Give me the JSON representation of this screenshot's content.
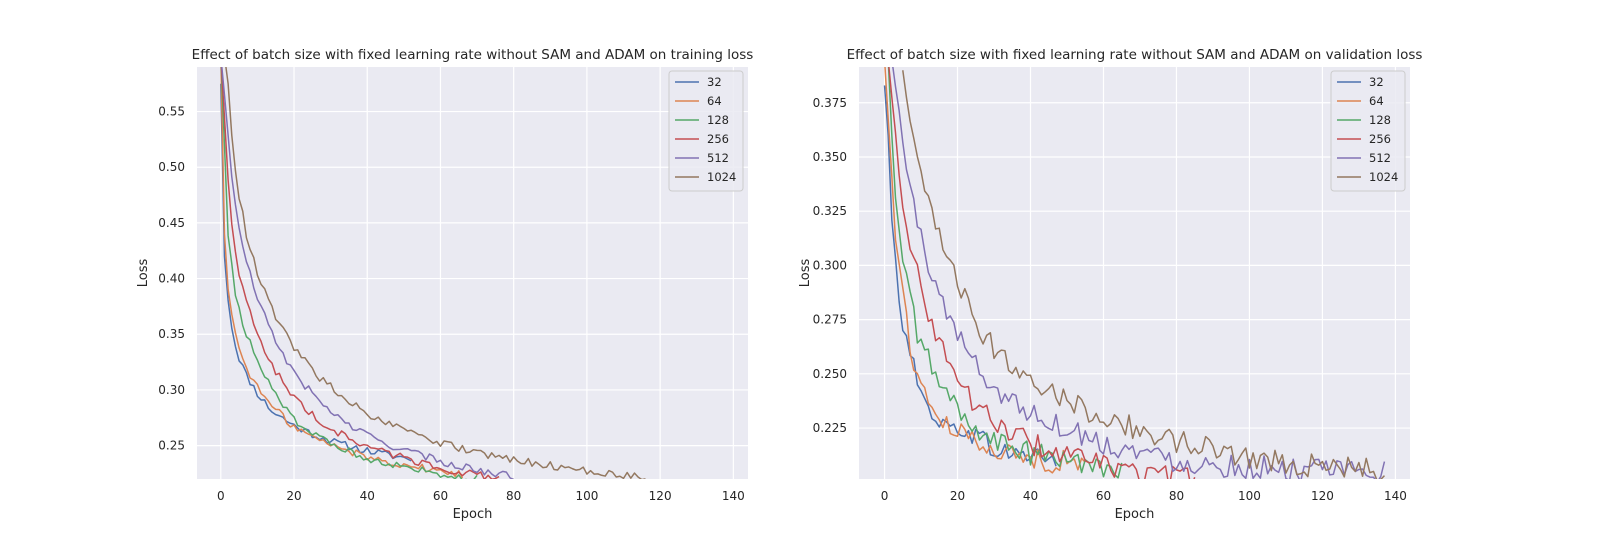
{
  "chart_data": [
    {
      "type": "line",
      "title": "Effect of batch size with fixed learning rate without SAM and ADAM on training loss",
      "xlabel": "Epoch",
      "ylabel": "Loss",
      "xlim": [
        -6.5,
        144
      ],
      "ylim": [
        0.22,
        0.59
      ],
      "xticks": [
        0,
        20,
        40,
        60,
        80,
        100,
        120,
        140
      ],
      "yticks": [
        0.25,
        0.3,
        0.35,
        0.4,
        0.45,
        0.5,
        0.55
      ],
      "ytick_labels": [
        "0.25",
        "0.30",
        "0.35",
        "0.40",
        "0.45",
        "0.50",
        "0.55"
      ],
      "grid": true,
      "legend_position": "top-right",
      "series": [
        {
          "name": "32",
          "color": "#4c72b0",
          "end": 52,
          "floor": 0.228,
          "a": 0.26,
          "k": 0.15,
          "points": [
            [
              0,
              0.575
            ],
            [
              1,
              0.42
            ],
            [
              2,
              0.382
            ],
            [
              3,
              0.357
            ],
            [
              4,
              0.34
            ],
            [
              5,
              0.329
            ],
            [
              7,
              0.313
            ],
            [
              10,
              0.297
            ],
            [
              14,
              0.281
            ],
            [
              20,
              0.268
            ],
            [
              26,
              0.259
            ],
            [
              32,
              0.252
            ],
            [
              38,
              0.247
            ],
            [
              45,
              0.242
            ],
            [
              52,
              0.238
            ]
          ]
        },
        {
          "name": "64",
          "color": "#dd8452",
          "end": 66,
          "floor": 0.225,
          "a": 0.25,
          "k": 0.14,
          "points": [
            [
              0,
              0.6
            ],
            [
              1,
              0.44
            ],
            [
              2,
              0.392
            ],
            [
              3,
              0.367
            ],
            [
              4,
              0.35
            ],
            [
              5,
              0.338
            ],
            [
              7,
              0.32
            ],
            [
              10,
              0.302
            ],
            [
              14,
              0.285
            ],
            [
              20,
              0.267
            ],
            [
              26,
              0.256
            ],
            [
              34,
              0.246
            ],
            [
              42,
              0.238
            ],
            [
              50,
              0.233
            ],
            [
              58,
              0.228
            ],
            [
              66,
              0.224
            ]
          ]
        },
        {
          "name": "128",
          "color": "#55a868",
          "end": 70,
          "floor": 0.222,
          "a": 0.24,
          "k": 0.12,
          "points": [
            [
              0,
              0.6
            ],
            [
              2,
              0.44
            ],
            [
              3,
              0.41
            ],
            [
              4,
              0.388
            ],
            [
              5,
              0.372
            ],
            [
              7,
              0.35
            ],
            [
              10,
              0.325
            ],
            [
              14,
              0.3
            ],
            [
              20,
              0.274
            ],
            [
              26,
              0.258
            ],
            [
              34,
              0.246
            ],
            [
              42,
              0.237
            ],
            [
              50,
              0.231
            ],
            [
              58,
              0.226
            ],
            [
              66,
              0.222
            ],
            [
              70,
              0.22
            ]
          ]
        },
        {
          "name": "256",
          "color": "#c44e52",
          "end": 76,
          "floor": 0.226,
          "a": 0.23,
          "k": 0.1,
          "points": [
            [
              0,
              0.6
            ],
            [
              2,
              0.49
            ],
            [
              3,
              0.45
            ],
            [
              4,
              0.425
            ],
            [
              5,
              0.405
            ],
            [
              7,
              0.378
            ],
            [
              10,
              0.35
            ],
            [
              14,
              0.322
            ],
            [
              20,
              0.293
            ],
            [
              26,
              0.274
            ],
            [
              34,
              0.258
            ],
            [
              42,
              0.247
            ],
            [
              50,
              0.239
            ],
            [
              58,
              0.232
            ],
            [
              66,
              0.226
            ],
            [
              76,
              0.22
            ]
          ]
        },
        {
          "name": "512",
          "color": "#8172b3",
          "end": 80,
          "floor": 0.228,
          "a": 0.22,
          "k": 0.085,
          "points": [
            [
              0,
              0.6
            ],
            [
              2,
              0.53
            ],
            [
              3,
              0.49
            ],
            [
              4,
              0.465
            ],
            [
              5,
              0.445
            ],
            [
              7,
              0.415
            ],
            [
              10,
              0.382
            ],
            [
              14,
              0.35
            ],
            [
              20,
              0.315
            ],
            [
              26,
              0.293
            ],
            [
              34,
              0.27
            ],
            [
              42,
              0.256
            ],
            [
              50,
              0.246
            ],
            [
              60,
              0.236
            ],
            [
              70,
              0.228
            ],
            [
              80,
              0.222
            ]
          ]
        },
        {
          "name": "1024",
          "color": "#937860",
          "end": 116,
          "floor": 0.225,
          "a": 0.21,
          "k": 0.07,
          "points": [
            [
              1,
              0.6
            ],
            [
              2,
              0.575
            ],
            [
              3,
              0.53
            ],
            [
              4,
              0.5
            ],
            [
              5,
              0.475
            ],
            [
              7,
              0.44
            ],
            [
              10,
              0.405
            ],
            [
              14,
              0.372
            ],
            [
              20,
              0.337
            ],
            [
              26,
              0.314
            ],
            [
              34,
              0.292
            ],
            [
              42,
              0.275
            ],
            [
              50,
              0.263
            ],
            [
              60,
              0.252
            ],
            [
              70,
              0.244
            ],
            [
              80,
              0.237
            ],
            [
              90,
              0.232
            ],
            [
              100,
              0.227
            ],
            [
              110,
              0.224
            ],
            [
              116,
              0.222
            ]
          ]
        }
      ]
    },
    {
      "type": "line",
      "title": "Effect of batch size with fixed learning rate without SAM and ADAM on validation loss",
      "xlabel": "Epoch",
      "ylabel": "Loss",
      "xlim": [
        -7,
        144
      ],
      "ylim": [
        0.2015,
        0.3915
      ],
      "xticks": [
        0,
        20,
        40,
        60,
        80,
        100,
        120,
        140
      ],
      "yticks": [
        0.225,
        0.25,
        0.275,
        0.3,
        0.325,
        0.35,
        0.375
      ],
      "ytick_labels": [
        "0.225",
        "0.250",
        "0.275",
        "0.300",
        "0.325",
        "0.350",
        "0.375"
      ],
      "grid": true,
      "legend_position": "top-right",
      "series": [
        {
          "name": "32",
          "color": "#4c72b0",
          "end": 47,
          "floor": 0.212,
          "a": 0.17,
          "k": 0.12,
          "points": [
            [
              0,
              0.383
            ],
            [
              1,
              0.36
            ],
            [
              2,
              0.32
            ],
            [
              3,
              0.3
            ],
            [
              5,
              0.273
            ],
            [
              6,
              0.27
            ],
            [
              7,
              0.258
            ],
            [
              8,
              0.26
            ],
            [
              9,
              0.242
            ],
            [
              12,
              0.235
            ],
            [
              16,
              0.226
            ],
            [
              20,
              0.225
            ],
            [
              25,
              0.222
            ],
            [
              30,
              0.215
            ],
            [
              35,
              0.213
            ],
            [
              40,
              0.213
            ],
            [
              47,
              0.21
            ]
          ]
        },
        {
          "name": "64",
          "color": "#dd8452",
          "end": 55,
          "floor": 0.211,
          "a": 0.17,
          "k": 0.11,
          "points": [
            [
              0,
              0.395
            ],
            [
              2,
              0.34
            ],
            [
              3,
              0.313
            ],
            [
              5,
              0.29
            ],
            [
              7,
              0.262
            ],
            [
              9,
              0.248
            ],
            [
              12,
              0.238
            ],
            [
              16,
              0.227
            ],
            [
              20,
              0.223
            ],
            [
              25,
              0.22
            ],
            [
              30,
              0.216
            ],
            [
              35,
              0.212
            ],
            [
              45,
              0.21
            ],
            [
              55,
              0.208
            ]
          ]
        },
        {
          "name": "128",
          "color": "#55a868",
          "end": 65,
          "floor": 0.209,
          "a": 0.17,
          "k": 0.095,
          "points": [
            [
              1,
              0.395
            ],
            [
              2,
              0.36
            ],
            [
              3,
              0.33
            ],
            [
              5,
              0.3
            ],
            [
              7,
              0.288
            ],
            [
              9,
              0.268
            ],
            [
              12,
              0.258
            ],
            [
              15,
              0.244
            ],
            [
              18,
              0.24
            ],
            [
              21,
              0.23
            ],
            [
              25,
              0.225
            ],
            [
              30,
              0.219
            ],
            [
              40,
              0.213
            ],
            [
              50,
              0.21
            ],
            [
              60,
              0.208
            ],
            [
              65,
              0.207
            ]
          ]
        },
        {
          "name": "256",
          "color": "#c44e52",
          "end": 85,
          "floor": 0.205,
          "a": 0.17,
          "k": 0.08,
          "points": [
            [
              1,
              0.395
            ],
            [
              3,
              0.36
            ],
            [
              5,
              0.33
            ],
            [
              7,
              0.31
            ],
            [
              10,
              0.29
            ],
            [
              13,
              0.272
            ],
            [
              16,
              0.262
            ],
            [
              20,
              0.248
            ],
            [
              25,
              0.235
            ],
            [
              30,
              0.228
            ],
            [
              40,
              0.218
            ],
            [
              50,
              0.212
            ],
            [
              60,
              0.208
            ],
            [
              70,
              0.204
            ],
            [
              80,
              0.202
            ],
            [
              85,
              0.2015
            ]
          ]
        },
        {
          "name": "512",
          "color": "#8172b3",
          "end": 137,
          "floor": 0.204,
          "a": 0.18,
          "k": 0.055,
          "points": [
            [
              2,
              0.395
            ],
            [
              4,
              0.37
            ],
            [
              6,
              0.345
            ],
            [
              9,
              0.32
            ],
            [
              12,
              0.3
            ],
            [
              16,
              0.283
            ],
            [
              20,
              0.268
            ],
            [
              25,
              0.255
            ],
            [
              30,
              0.243
            ],
            [
              40,
              0.232
            ],
            [
              50,
              0.225
            ],
            [
              60,
              0.218
            ],
            [
              70,
              0.214
            ],
            [
              80,
              0.21
            ],
            [
              90,
              0.208
            ],
            [
              100,
              0.207
            ],
            [
              110,
              0.206
            ],
            [
              120,
              0.205
            ],
            [
              130,
              0.205
            ],
            [
              137,
              0.205
            ]
          ]
        },
        {
          "name": "1024",
          "color": "#937860",
          "end": 137,
          "floor": 0.205,
          "a": 0.19,
          "k": 0.04,
          "points": [
            [
              5,
              0.39
            ],
            [
              7,
              0.365
            ],
            [
              10,
              0.34
            ],
            [
              14,
              0.318
            ],
            [
              18,
              0.3
            ],
            [
              22,
              0.285
            ],
            [
              26,
              0.27
            ],
            [
              30,
              0.262
            ],
            [
              35,
              0.255
            ],
            [
              40,
              0.248
            ],
            [
              50,
              0.238
            ],
            [
              60,
              0.23
            ],
            [
              70,
              0.224
            ],
            [
              80,
              0.219
            ],
            [
              90,
              0.215
            ],
            [
              100,
              0.212
            ],
            [
              110,
              0.209
            ],
            [
              120,
              0.207
            ],
            [
              130,
              0.206
            ],
            [
              137,
              0.205
            ]
          ]
        }
      ]
    }
  ]
}
